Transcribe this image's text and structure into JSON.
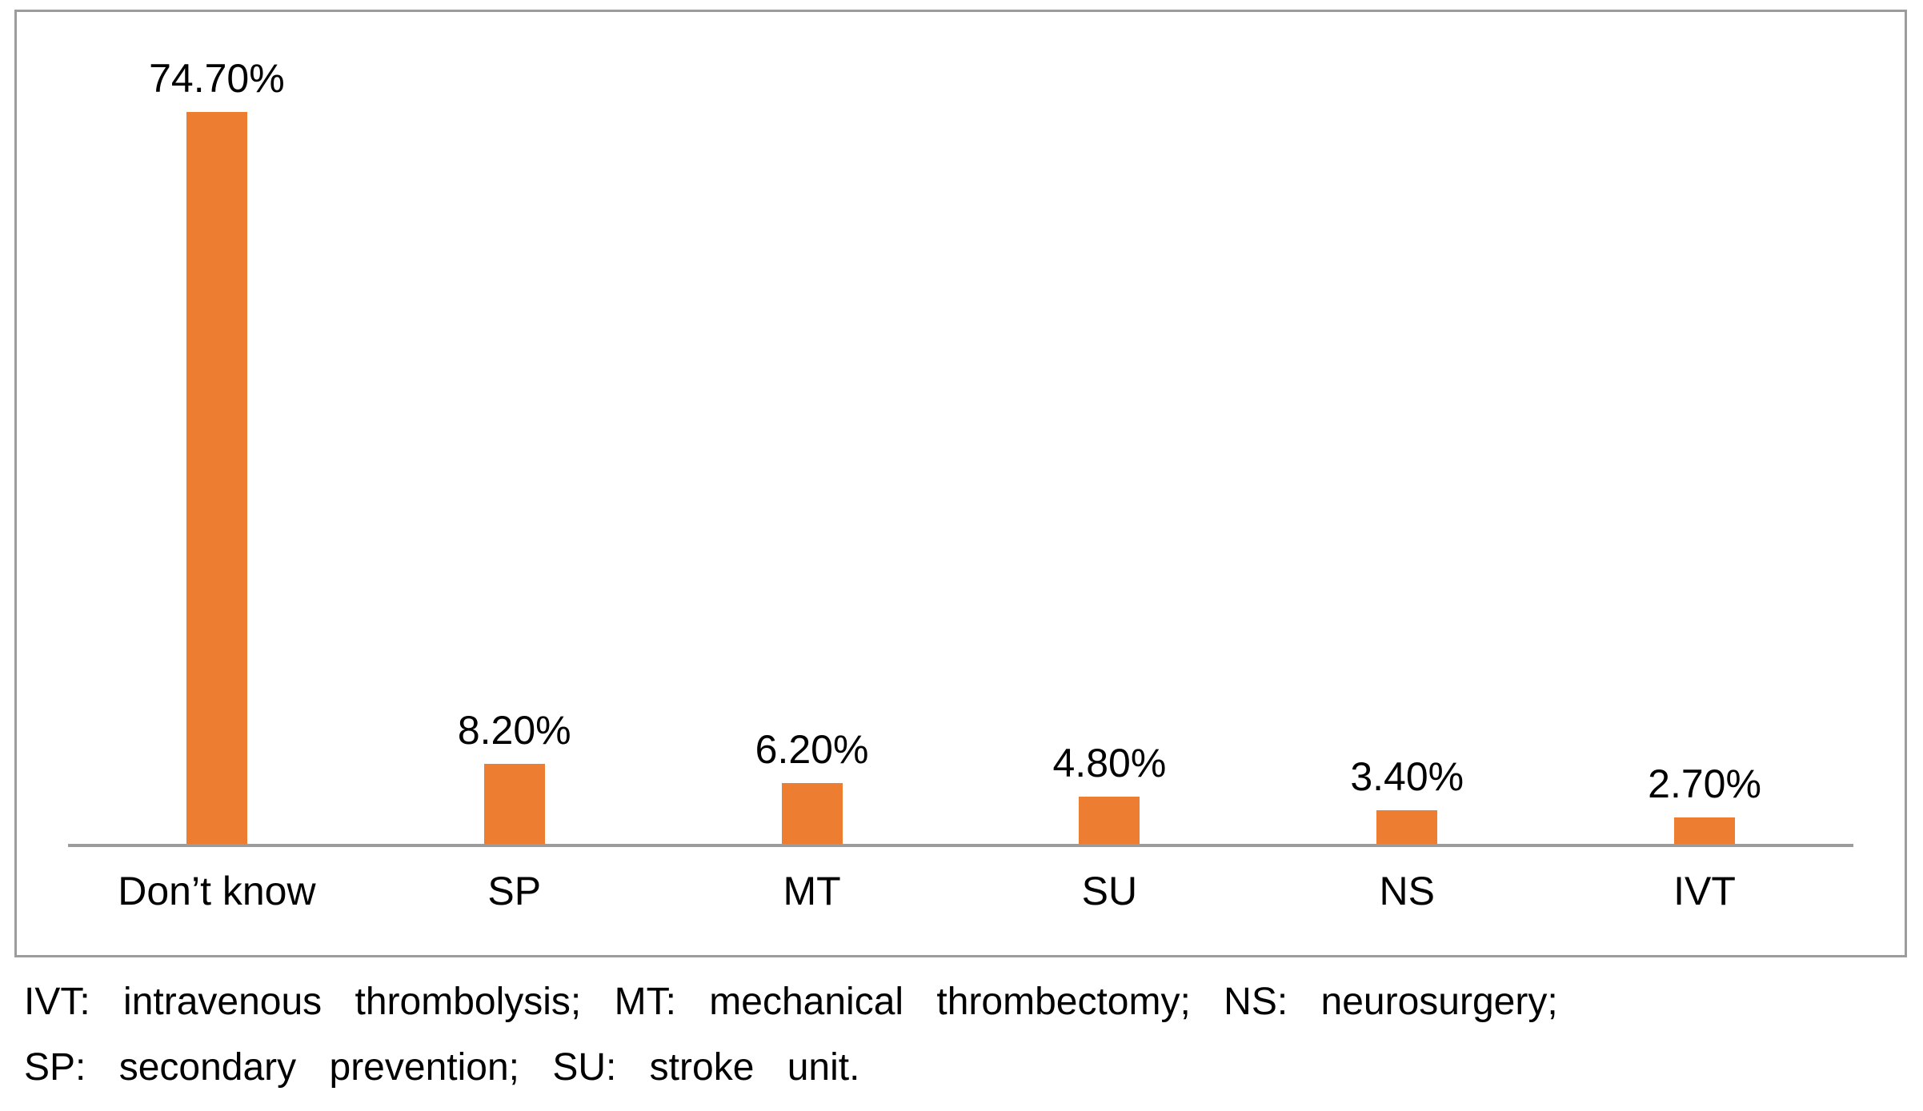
{
  "chart_data": {
    "type": "bar",
    "title": "",
    "xlabel": "",
    "ylabel": "",
    "categories": [
      "Don’t know",
      "SP",
      "MT",
      "SU",
      "NS",
      "IVT"
    ],
    "values": [
      74.7,
      8.2,
      6.2,
      4.8,
      3.4,
      2.7
    ],
    "value_labels": [
      "74.70%",
      "8.20%",
      "6.20%",
      "4.80%",
      "3.40%",
      "2.70%"
    ],
    "ylim": [
      0,
      80
    ],
    "grid": "off",
    "legend": "none",
    "bar_color": "#ED7D31",
    "axis_line_color": "#9c9c9c",
    "frame_border_color": "#9c9c9c"
  },
  "caption": {
    "line1": "IVT: intravenous thrombolysis; MT: mechanical thrombectomy; NS: neurosurgery;",
    "line2": "SP: secondary prevention; SU: stroke unit."
  }
}
